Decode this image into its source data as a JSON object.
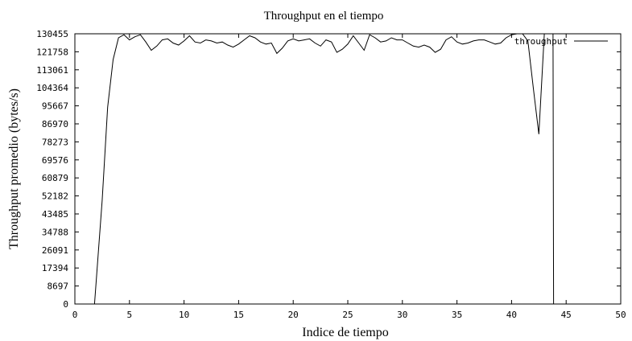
{
  "chart_data": {
    "type": "line",
    "title": "Throughput en el tiempo",
    "xlabel": "Indice de tiempo",
    "ylabel": "Throughput promedio (bytes/s)",
    "xlim": [
      0,
      50
    ],
    "ylim": [
      0,
      130455
    ],
    "x_ticks": [
      0,
      5,
      10,
      15,
      20,
      25,
      30,
      35,
      40,
      45,
      50
    ],
    "y_ticks": [
      0,
      8697,
      17394,
      26091,
      34788,
      43485,
      52182,
      60879,
      69576,
      78273,
      86970,
      95667,
      104364,
      113061,
      121758,
      130455
    ],
    "legend_position": "top-right",
    "series_color": "#000000",
    "series": [
      {
        "name": "throughput",
        "x": [
          1.8,
          2.5,
          3.0,
          3.5,
          4.0,
          4.5,
          5.0,
          5.5,
          6.0,
          6.5,
          7.0,
          7.5,
          8.0,
          8.5,
          9.0,
          9.5,
          10.0,
          10.5,
          11.0,
          11.5,
          12.0,
          12.5,
          13.0,
          13.5,
          14.0,
          14.5,
          15.0,
          15.5,
          16.0,
          16.5,
          17.0,
          17.5,
          18.0,
          18.5,
          19.0,
          19.5,
          20.0,
          20.5,
          21.0,
          21.5,
          22.0,
          22.5,
          23.0,
          23.5,
          24.0,
          24.5,
          25.0,
          25.5,
          26.0,
          26.5,
          27.0,
          27.5,
          28.0,
          28.5,
          29.0,
          29.5,
          30.0,
          30.5,
          31.0,
          31.5,
          32.0,
          32.5,
          33.0,
          33.5,
          34.0,
          34.5,
          35.0,
          35.5,
          36.0,
          36.5,
          37.0,
          37.5,
          38.0,
          38.5,
          39.0,
          39.5,
          40.0,
          40.5,
          41.0,
          41.5,
          42.0,
          42.5,
          43.0,
          43.5,
          43.8,
          43.85
        ],
        "values": [
          0,
          50000,
          95000,
          118000,
          128500,
          130000,
          127500,
          129000,
          130000,
          126500,
          122500,
          124500,
          127500,
          128000,
          126000,
          125000,
          127000,
          129500,
          126500,
          126000,
          127500,
          127000,
          126000,
          126500,
          125000,
          124000,
          125500,
          127500,
          129500,
          128500,
          126500,
          125500,
          126000,
          121000,
          123500,
          127000,
          128000,
          127000,
          127500,
          128000,
          126000,
          124500,
          127500,
          126500,
          121500,
          123000,
          125500,
          129500,
          126000,
          122500,
          130000,
          128500,
          126500,
          127000,
          128500,
          127500,
          127500,
          126000,
          124500,
          124000,
          125000,
          124000,
          121500,
          123000,
          127500,
          129000,
          126500,
          125500,
          126000,
          127000,
          127500,
          127500,
          126500,
          125500,
          126000,
          128500,
          130000,
          130455,
          130455,
          127000,
          104000,
          82000,
          130455,
          130455,
          130455,
          0
        ]
      }
    ]
  }
}
